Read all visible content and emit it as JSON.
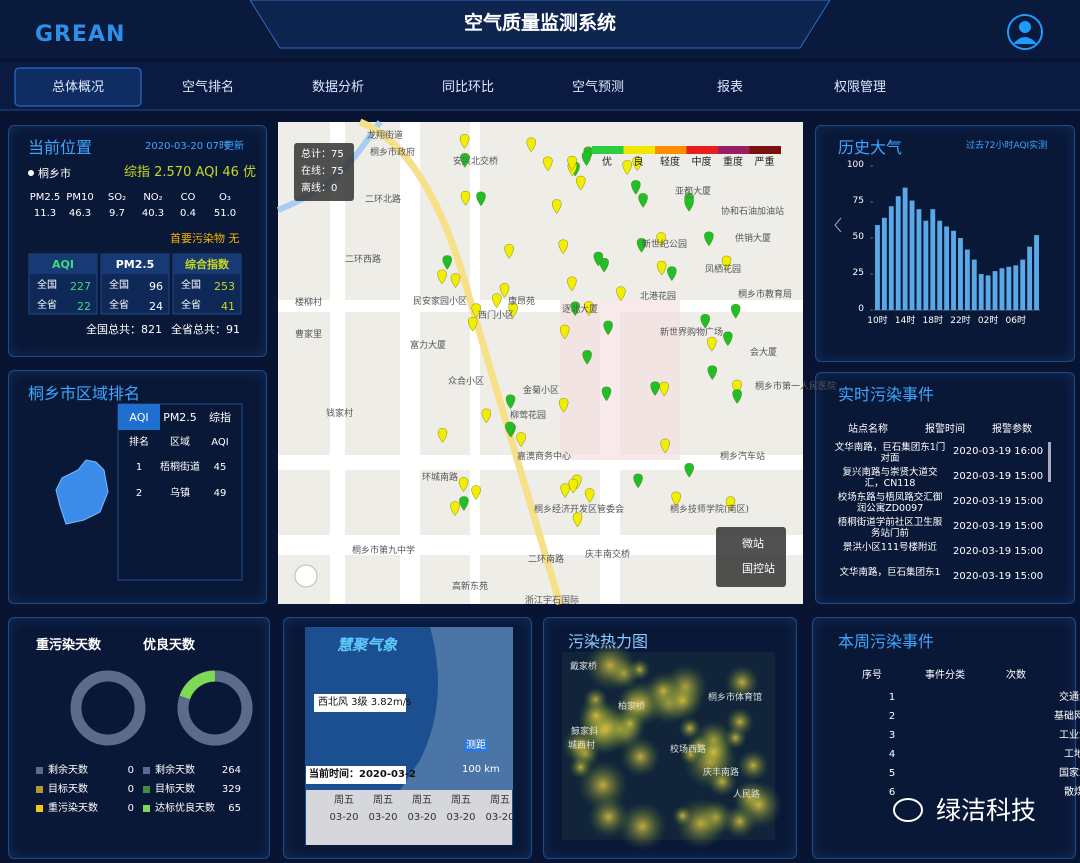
{
  "header": {
    "logo": "GREAN",
    "title": "空气质量监测系统"
  },
  "nav": [
    "总体概况",
    "空气排名",
    "数据分析",
    "同比环比",
    "空气预测",
    "报表",
    "权限管理"
  ],
  "current": {
    "title": "当前位置",
    "time": "2020-03-20 07时",
    "update": "更新",
    "city": "桐乡市",
    "summary": "综指 2.570 AQI 46 优",
    "headers": [
      "PM2.5",
      "PM10",
      "SO₂",
      "NO₂",
      "CO",
      "O₃"
    ],
    "values": [
      "11.3",
      "46.3",
      "9.7",
      "40.3",
      "0.4",
      "51.0"
    ],
    "primary": "首要污染物 无",
    "rank_tables": [
      {
        "title": "AQI",
        "rows": [
          [
            "全国",
            "227"
          ],
          [
            "全省",
            "22"
          ]
        ]
      },
      {
        "title": "PM2.5",
        "rows": [
          [
            "全国",
            "96"
          ],
          [
            "全省",
            "24"
          ]
        ]
      },
      {
        "title": "综合指数",
        "rows": [
          [
            "全国",
            "253"
          ],
          [
            "全省",
            "41"
          ]
        ]
      }
    ],
    "totals": [
      "全国总共：821",
      "全省总共：91"
    ]
  },
  "region": {
    "title": "桐乡市区域排名",
    "tabs": [
      "AQI",
      "PM2.5",
      "综指"
    ],
    "headers": [
      "排名",
      "区域",
      "AQI"
    ],
    "rows": [
      [
        "1",
        "梧桐街道",
        "45"
      ],
      [
        "2",
        "乌镇",
        "49"
      ]
    ]
  },
  "map": {
    "stats": [
      "总计：75",
      "在线：75",
      "离线：0"
    ],
    "legend": [
      {
        "label": "优",
        "color": "#2ecc40"
      },
      {
        "label": "良",
        "color": "#f2e600"
      },
      {
        "label": "轻度",
        "color": "#ff8c00"
      },
      {
        "label": "中度",
        "color": "#e81e1e"
      },
      {
        "label": "重度",
        "color": "#9b1e63"
      },
      {
        "label": "严重",
        "color": "#7a1010"
      }
    ],
    "places": [
      "龙翔街道",
      "桐乡市政府",
      "安兴北交桥",
      "二环北路",
      "二环西路",
      "民安家园小区",
      "西门小区",
      "康昂苑",
      "逐北大厦",
      "北港花园",
      "新世纪公园",
      "凤栖花园",
      "桐乡市教育局",
      "富力大厦",
      "众合小区",
      "金菊小区",
      "柳莺花园",
      "嘉澳商务中心",
      "环城南路",
      "二环南路",
      "庆丰南交桥",
      "桐乡经济开发区管委会",
      "桐乡技师学院(南区)",
      "桐乡汽车站",
      "桐乡市第九中学",
      "高新东苑",
      "浙江宇石国际",
      "钱家村",
      "曹家里",
      "楼柳村",
      "桐乡市第一人民医院",
      "亚都大厦",
      "协和石油加油站",
      "供销大厦",
      "新世界购物广场",
      "会大厦"
    ],
    "station_types": [
      "微站",
      "国控站"
    ]
  },
  "history": {
    "title": "历史大气",
    "subtitle": "过去72小时AQI实测",
    "chart": {
      "type": "bar",
      "categories": [
        "10时",
        null,
        null,
        null,
        "14时",
        null,
        null,
        null,
        "18时",
        null,
        null,
        null,
        "22时",
        null,
        null,
        null,
        "02时",
        null,
        null,
        null,
        "06时",
        null,
        null,
        null
      ],
      "values": [
        59,
        64,
        72,
        79,
        85,
        76,
        70,
        62,
        70,
        62,
        58,
        55,
        50,
        42,
        35,
        25,
        24,
        27,
        29,
        30,
        31,
        35,
        44,
        52
      ],
      "color": "#5aa9e6",
      "ylim": [
        0,
        100
      ],
      "yticks": [
        0,
        25,
        50,
        75,
        100
      ]
    }
  },
  "realtime": {
    "title": "实时污染事件",
    "headers": [
      "站点名称",
      "报警时间",
      "报警参数"
    ],
    "rows": [
      [
        "文华南路，巨石集团东1门对面",
        "2020-03-19 16:00"
      ],
      [
        "复兴南路与崇贤大道交汇，CN118",
        "2020-03-19 15:00"
      ],
      [
        "校场东路与梧凤路交汇御润公寓ZD0097",
        "2020-03-19 15:00"
      ],
      [
        "梧桐街道学前社区卫生服务站门前",
        "2020-03-19 15:00"
      ],
      [
        "景洪小区111号楼附近",
        "2020-03-19 15:00"
      ],
      [
        "文华南路，巨石集团东1",
        "2020-03-19 15:00"
      ]
    ]
  },
  "days": [
    {
      "title": "重污染天数",
      "legend": [
        {
          "label": "剩余天数",
          "value": 0,
          "color": "#5b6b8c"
        },
        {
          "label": "目标天数",
          "value": 0,
          "color": "#b39a2e"
        },
        {
          "label": "重污染天数",
          "value": 0,
          "color": "#f5c518"
        }
      ]
    },
    {
      "title": "优良天数",
      "legend": [
        {
          "label": "剩余天数",
          "value": 264,
          "color": "#5b6b8c"
        },
        {
          "label": "目标天数",
          "value": 329,
          "color": "#3f8f3f"
        },
        {
          "label": "达标优良天数",
          "value": 65,
          "color": "#7ed957"
        }
      ]
    }
  ],
  "weather": {
    "brand": "慧聚气象",
    "wind": "西北风 3级 3.82m/s",
    "time": "当前时间：2020-03-2",
    "scale": "100 km",
    "badge": "测距",
    "days": [
      "周五",
      "周五",
      "周五",
      "周五",
      "周五"
    ],
    "dates": [
      "03-20",
      "03-20",
      "03-20",
      "03-20",
      "03-20"
    ]
  },
  "heat": {
    "title": "污染热力图",
    "places": [
      "戴家桥",
      "桐乡市体育馆",
      "柏家桥",
      "鲸家斜",
      "城西村",
      "校场西路",
      "庆丰南路",
      "人民路"
    ]
  },
  "weekly": {
    "title": "本周污染事件",
    "headers": [
      "序号",
      "事件分类",
      "次数"
    ],
    "rows": [
      [
        "1",
        "交通源"
      ],
      [
        "2",
        "基础网格"
      ],
      [
        "3",
        "工业源"
      ],
      [
        "4",
        "工地"
      ],
      [
        "5",
        "国家站"
      ],
      [
        "6",
        "散煤"
      ]
    ]
  },
  "watermark": "绿洁科技"
}
